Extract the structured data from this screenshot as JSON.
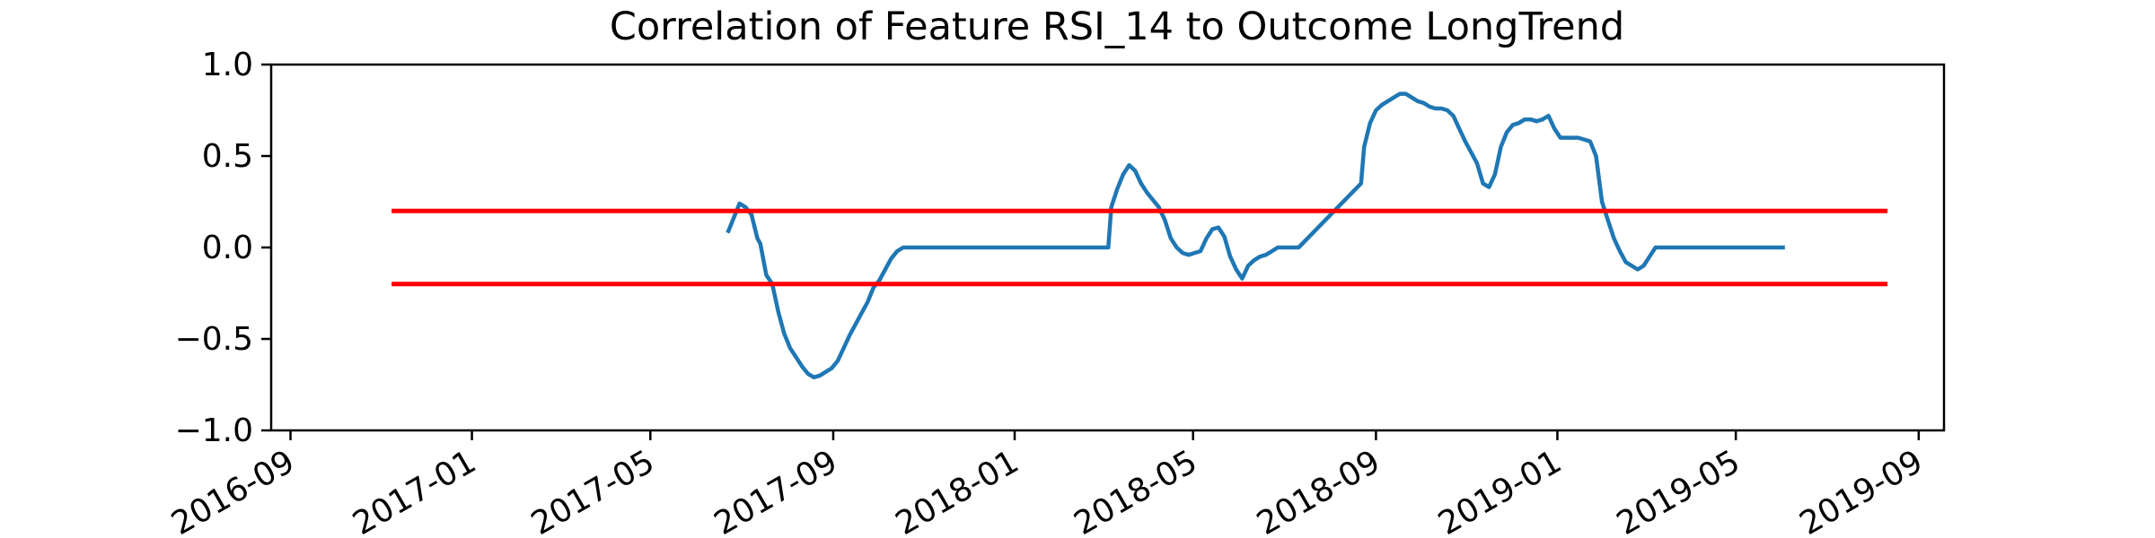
{
  "chart_data": {
    "type": "line",
    "title": "Correlation of Feature RSI_14 to Outcome LongTrend",
    "xlabel": "",
    "ylabel": "",
    "ylim": [
      -1.0,
      1.0
    ],
    "xlim": [
      "2016-08-19",
      "2019-09-18"
    ],
    "grid": false,
    "legend": "none",
    "y_ticks": [
      {
        "value": 1.0,
        "label": "1.0"
      },
      {
        "value": 0.5,
        "label": "0.5"
      },
      {
        "value": 0.0,
        "label": "0.0"
      },
      {
        "value": -0.5,
        "label": "−0.5"
      },
      {
        "value": -1.0,
        "label": "−1.0"
      }
    ],
    "x_ticks": [
      {
        "value": "2016-09-01",
        "label": "2016-09"
      },
      {
        "value": "2017-01-01",
        "label": "2017-01"
      },
      {
        "value": "2017-05-01",
        "label": "2017-05"
      },
      {
        "value": "2017-09-01",
        "label": "2017-09"
      },
      {
        "value": "2018-01-01",
        "label": "2018-01"
      },
      {
        "value": "2018-05-01",
        "label": "2018-05"
      },
      {
        "value": "2018-09-01",
        "label": "2018-09"
      },
      {
        "value": "2019-01-01",
        "label": "2019-01"
      },
      {
        "value": "2019-05-01",
        "label": "2019-05"
      },
      {
        "value": "2019-09-01",
        "label": "2019-09"
      }
    ],
    "series": [
      {
        "color": "#1f77b4",
        "x": [
          "2017-06-22",
          "2017-06-26",
          "2017-06-30",
          "2017-07-04",
          "2017-07-08",
          "2017-07-12",
          "2017-07-14",
          "2017-07-18",
          "2017-07-22",
          "2017-07-26",
          "2017-07-30",
          "2017-08-03",
          "2017-08-07",
          "2017-08-11",
          "2017-08-15",
          "2017-08-19",
          "2017-08-23",
          "2017-08-27",
          "2017-08-31",
          "2017-09-04",
          "2017-09-08",
          "2017-09-12",
          "2017-09-16",
          "2017-09-20",
          "2017-09-24",
          "2017-09-28",
          "2017-10-02",
          "2017-10-06",
          "2017-10-10",
          "2017-10-14",
          "2017-10-18",
          "2017-10-22",
          "2017-10-23",
          "2018-03-05",
          "2018-03-07",
          "2018-03-11",
          "2018-03-15",
          "2018-03-19",
          "2018-03-23",
          "2018-03-27",
          "2018-03-31",
          "2018-04-04",
          "2018-04-08",
          "2018-04-12",
          "2018-04-16",
          "2018-04-20",
          "2018-04-24",
          "2018-04-28",
          "2018-05-02",
          "2018-05-06",
          "2018-05-10",
          "2018-05-14",
          "2018-05-18",
          "2018-05-22",
          "2018-05-26",
          "2018-05-30",
          "2018-06-03",
          "2018-06-07",
          "2018-06-11",
          "2018-06-15",
          "2018-06-19",
          "2018-06-23",
          "2018-06-27",
          "2018-07-01",
          "2018-07-05",
          "2018-07-09",
          "2018-07-11",
          "2018-08-22",
          "2018-08-24",
          "2018-08-28",
          "2018-09-01",
          "2018-09-05",
          "2018-09-09",
          "2018-09-13",
          "2018-09-17",
          "2018-09-21",
          "2018-09-25",
          "2018-09-29",
          "2018-10-03",
          "2018-10-07",
          "2018-10-11",
          "2018-10-15",
          "2018-10-19",
          "2018-10-23",
          "2018-10-27",
          "2018-10-31",
          "2018-11-04",
          "2018-11-08",
          "2018-11-12",
          "2018-11-16",
          "2018-11-20",
          "2018-11-24",
          "2018-11-28",
          "2018-12-02",
          "2018-12-06",
          "2018-12-10",
          "2018-12-14",
          "2018-12-18",
          "2018-12-22",
          "2018-12-26",
          "2018-12-30",
          "2019-01-03",
          "2019-01-07",
          "2019-01-11",
          "2019-01-15",
          "2019-01-19",
          "2019-01-23",
          "2019-01-27",
          "2019-01-31",
          "2019-02-04",
          "2019-02-08",
          "2019-02-12",
          "2019-02-16",
          "2019-02-20",
          "2019-02-24",
          "2019-02-28",
          "2019-03-04",
          "2019-03-08",
          "2019-03-12",
          "2019-03-16",
          "2019-03-20",
          "2019-03-24",
          "2019-03-28",
          "2019-04-01",
          "2019-04-05",
          "2019-04-09",
          "2019-04-13",
          "2019-04-17",
          "2019-04-19",
          "2019-06-03"
        ],
        "y": [
          0.08,
          0.16,
          0.24,
          0.22,
          0.18,
          0.05,
          0.02,
          -0.15,
          -0.2,
          -0.35,
          -0.47,
          -0.55,
          -0.6,
          -0.65,
          -0.69,
          -0.71,
          -0.7,
          -0.68,
          -0.66,
          -0.62,
          -0.55,
          -0.48,
          -0.42,
          -0.36,
          -0.3,
          -0.22,
          -0.18,
          -0.12,
          -0.06,
          -0.02,
          0.0,
          0.0,
          0.0,
          0.0,
          0.22,
          0.32,
          0.4,
          0.45,
          0.42,
          0.35,
          0.3,
          0.26,
          0.22,
          0.15,
          0.05,
          0.0,
          -0.03,
          -0.04,
          -0.03,
          -0.02,
          0.05,
          0.1,
          0.11,
          0.06,
          -0.05,
          -0.12,
          -0.17,
          -0.1,
          -0.07,
          -0.05,
          -0.04,
          -0.02,
          0.0,
          0.0,
          0.0,
          0.0,
          0.0,
          0.35,
          0.55,
          0.68,
          0.75,
          0.78,
          0.8,
          0.82,
          0.84,
          0.84,
          0.82,
          0.8,
          0.79,
          0.77,
          0.76,
          0.76,
          0.75,
          0.72,
          0.65,
          0.58,
          0.52,
          0.46,
          0.35,
          0.33,
          0.4,
          0.55,
          0.63,
          0.67,
          0.68,
          0.7,
          0.7,
          0.69,
          0.7,
          0.72,
          0.65,
          0.6,
          0.6,
          0.6,
          0.6,
          0.59,
          0.58,
          0.5,
          0.25,
          0.15,
          0.05,
          -0.02,
          -0.08,
          -0.1,
          -0.12,
          -0.1,
          -0.05,
          0.0,
          0.0,
          0.0,
          0.0,
          0.0,
          0.0,
          0.0,
          0.0,
          0.0,
          0.0,
          0.0,
          0.0,
          0.0
        ]
      },
      {
        "color": "#ff0000",
        "x": [
          "2016-11-08",
          "2019-08-11"
        ],
        "y": [
          0.2,
          0.2
        ]
      },
      {
        "color": "#ff0000",
        "x": [
          "2016-11-08",
          "2019-08-11"
        ],
        "y": [
          -0.2,
          -0.2
        ]
      }
    ]
  }
}
